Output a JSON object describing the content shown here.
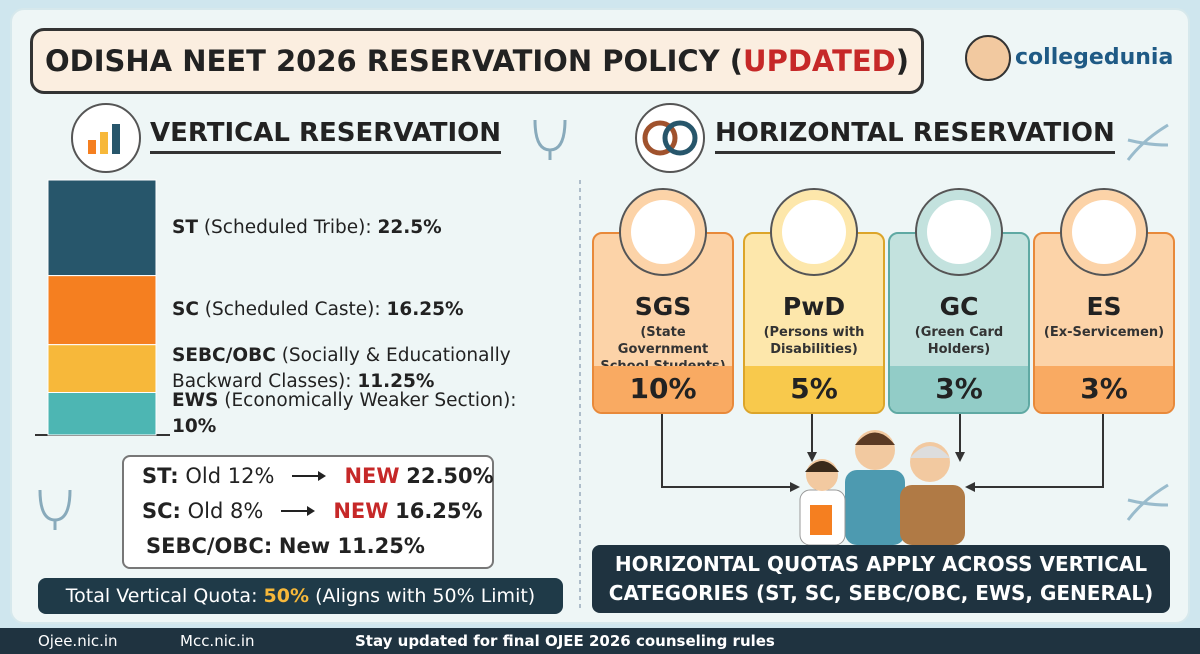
{
  "header": {
    "title_prefix": "ODISHA NEET 2026 RESERVATION POLICY (",
    "title_highlight": "UPDATED",
    "title_suffix": ")",
    "logo": "collegedunia"
  },
  "vertical": {
    "heading": "VERTICAL RESERVATION",
    "items": [
      {
        "code": "ST",
        "description": "(Scheduled Tribe):",
        "percent": {
          "value": 22.5,
          "label": "22.5%"
        },
        "color": "#27566b"
      },
      {
        "code": "SC",
        "description": "(Scheduled Caste):",
        "percent": {
          "value": 16.25,
          "label": "16.25%"
        },
        "color": "#f57f20"
      },
      {
        "code": "SEBC/OBC",
        "description": "(Socially & Educationally Backward Classes):",
        "percent": {
          "value": 11.25,
          "label": "11.25%"
        },
        "color": "#f7b83a"
      },
      {
        "code": "EWS",
        "description": "(Economically Weaker Section):",
        "percent": {
          "value": 10,
          "label": "10%"
        },
        "color": "#4db6b3"
      }
    ],
    "changes": [
      {
        "category": "ST:",
        "old": "Old 12%",
        "new_tag": "NEW",
        "new": "22.50%"
      },
      {
        "category": "SC:",
        "old": "Old 8%",
        "new_tag": "NEW",
        "new": "16.25%"
      },
      {
        "category": "SEBC/OBC:",
        "new": "New 11.25%"
      }
    ],
    "total": {
      "label": "Total Vertical Quota:",
      "value": "50%",
      "note": "(Aligns with 50% Limit)"
    }
  },
  "horizontal": {
    "heading": "HORIZONTAL RESERVATION",
    "cards": [
      {
        "code": "SGS",
        "description": "(State Government School Students)",
        "percent": "10%",
        "color": "#fcd3a8",
        "accent": "#f9aa62",
        "border": "#e8893a"
      },
      {
        "code": "PwD",
        "description": "(Persons with Disabilities)",
        "percent": "5%",
        "color": "#fde7ab",
        "accent": "#f8c94c",
        "border": "#dca52a"
      },
      {
        "code": "GC",
        "description": "(Green Card Holders)",
        "percent": "3%",
        "color": "#c3e2de",
        "accent": "#92ccc7",
        "border": "#5fa9a3"
      },
      {
        "code": "ES",
        "description": "(Ex-Servicemen)",
        "percent": "3%",
        "color": "#fcd3a8",
        "accent": "#f9aa62",
        "border": "#e8893a"
      }
    ],
    "note": "HORIZONTAL QUOTAS APPLY ACROSS VERTICAL CATEGORIES (ST, SC, SEBC/OBC, EWS, GENERAL)"
  },
  "footer": {
    "links": [
      "Ojee.nic.in",
      "Mcc.nic.in"
    ],
    "message": "Stay updated for final OJEE 2026 counseling rules"
  }
}
